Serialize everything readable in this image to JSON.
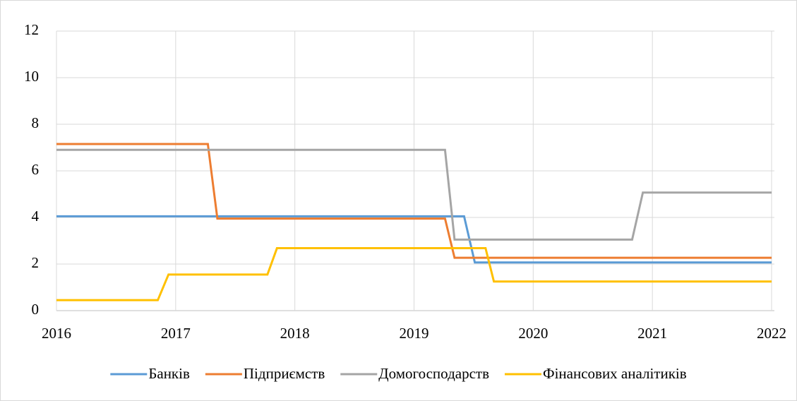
{
  "chart_data": {
    "type": "line",
    "xlim": [
      2016,
      2022
    ],
    "xticks": [
      2016,
      2017,
      2018,
      2019,
      2020,
      2021,
      2022
    ],
    "ylim": [
      0,
      12
    ],
    "yticks": [
      0,
      2,
      4,
      6,
      8,
      10,
      12
    ],
    "grid": true,
    "legend": "bottom",
    "series": [
      {
        "name": "Банків",
        "color": "#5b9bd5",
        "x": [
          2016,
          2019.42,
          2019.51,
          2022
        ],
        "values": [
          4.05,
          4.05,
          2.07,
          2.07
        ]
      },
      {
        "name": "Підприємств",
        "color": "#ed7d31",
        "x": [
          2016,
          2017.27,
          2017.35,
          2019.26,
          2019.34,
          2022
        ],
        "values": [
          7.15,
          7.15,
          3.95,
          3.95,
          2.27,
          2.27
        ]
      },
      {
        "name": "Домогосподарств",
        "color": "#a5a5a5",
        "x": [
          2016,
          2019.26,
          2019.34,
          2020.83,
          2020.92,
          2022
        ],
        "values": [
          6.9,
          6.9,
          3.05,
          3.05,
          5.07,
          5.07
        ]
      },
      {
        "name": "Фінансових аналітиків",
        "color": "#ffc000",
        "x": [
          2016,
          2016.85,
          2016.94,
          2017.77,
          2017.85,
          2019.6,
          2019.67,
          2022
        ],
        "values": [
          0.45,
          0.45,
          1.55,
          1.55,
          2.68,
          2.68,
          1.25,
          1.25
        ]
      }
    ]
  }
}
